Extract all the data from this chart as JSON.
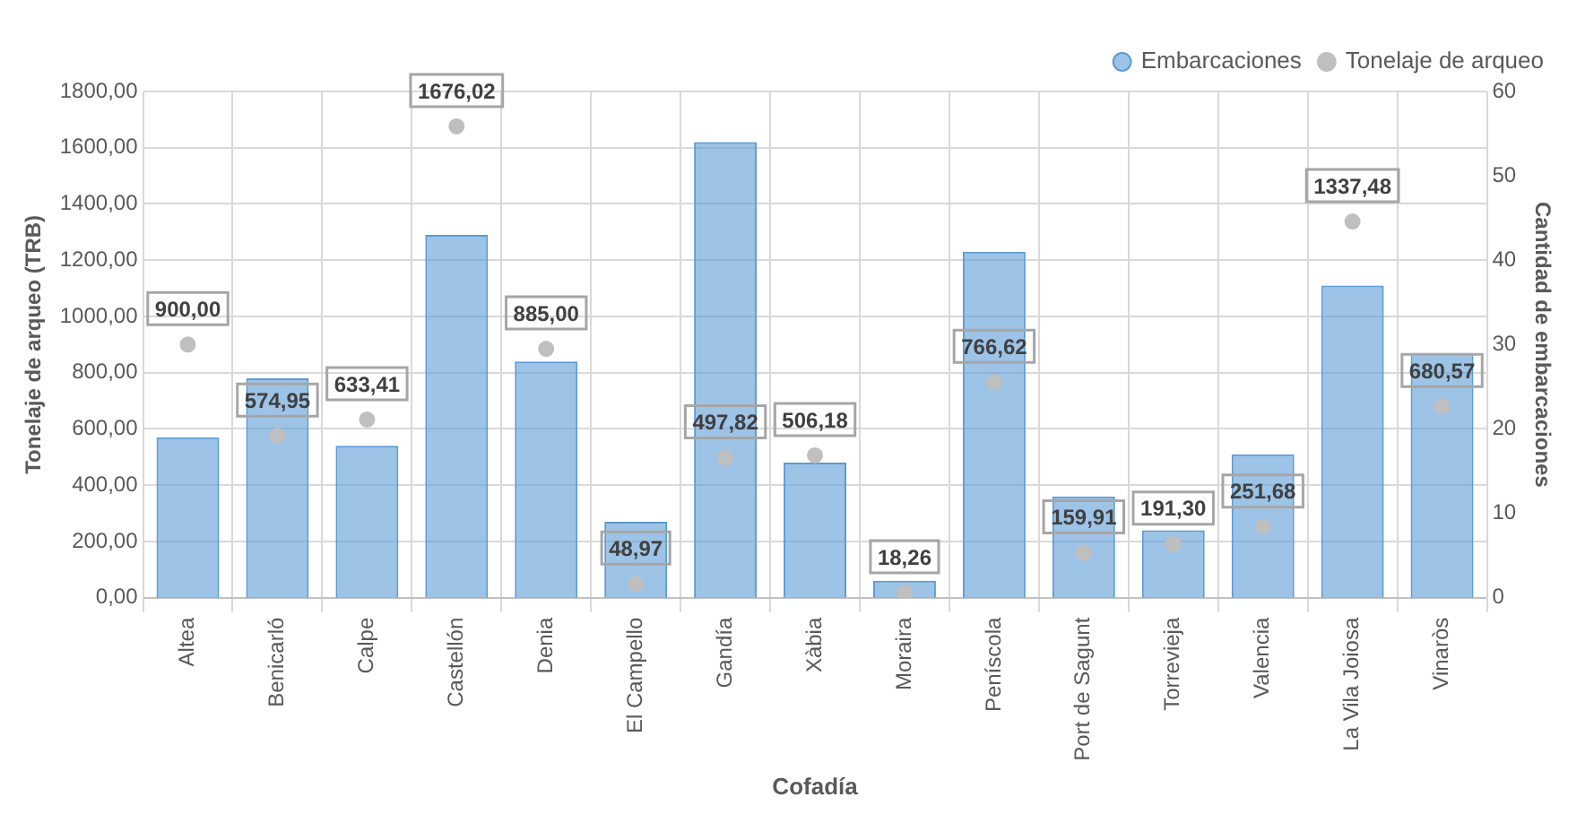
{
  "chart_data": {
    "type": "bar",
    "xlabel": "Cofadía",
    "ylabel": "Tonelaje de arqueo (TRB)",
    "y2label": "Cantidad de embarcaciones",
    "categories": [
      "Altea",
      "Benicarló",
      "Calpe",
      "Castellón",
      "Denia",
      "El Campello",
      "Gandía",
      "Xàbia",
      "Moraira",
      "Peníscola",
      "Port de Sagunt",
      "Torrevieja",
      "Valencia",
      "La Vila Joiosa",
      "Vinaròs"
    ],
    "series": [
      {
        "name": "Embarcaciones",
        "axis": "y2",
        "color": "#5b9bd5",
        "values": [
          19,
          26,
          18,
          43,
          28,
          9,
          54,
          16,
          2,
          41,
          12,
          8,
          17,
          37,
          29
        ]
      },
      {
        "name": "Tonelaje de arqueo",
        "type": "scatter",
        "color": "#bfbfbf",
        "marker": "circle",
        "values": [
          900,
          574.95,
          633.41,
          1676.02,
          885,
          48.97,
          497.82,
          506.18,
          18.26,
          766.62,
          159.91,
          191.3,
          251.68,
          1337.48,
          680.57
        ],
        "value_labels": [
          "900,00",
          "574,95",
          "633,41",
          "1676,02",
          "885,00",
          "48,97",
          "497,82",
          "506,18",
          "18,26",
          "766,62",
          "159,91",
          "191,30",
          "251,68",
          "1337,48",
          "680,57"
        ]
      }
    ],
    "ylim": [
      0,
      1800
    ],
    "yticks": [
      {
        "value": 0,
        "label": "0,00"
      },
      {
        "value": 200,
        "label": "200,00"
      },
      {
        "value": 400,
        "label": "400,00"
      },
      {
        "value": 600,
        "label": "600,00"
      },
      {
        "value": 800,
        "label": "800,00"
      },
      {
        "value": 1000,
        "label": "1000,00"
      },
      {
        "value": 1200,
        "label": "1200,00"
      },
      {
        "value": 1400,
        "label": "1400,00"
      },
      {
        "value": 1600,
        "label": "1600,00"
      },
      {
        "value": 1800,
        "label": "1800,00"
      }
    ],
    "y2lim": [
      0,
      60
    ],
    "y2ticks": [
      0,
      10,
      20,
      30,
      40,
      50,
      60
    ],
    "grid": true,
    "legend": "top right"
  }
}
